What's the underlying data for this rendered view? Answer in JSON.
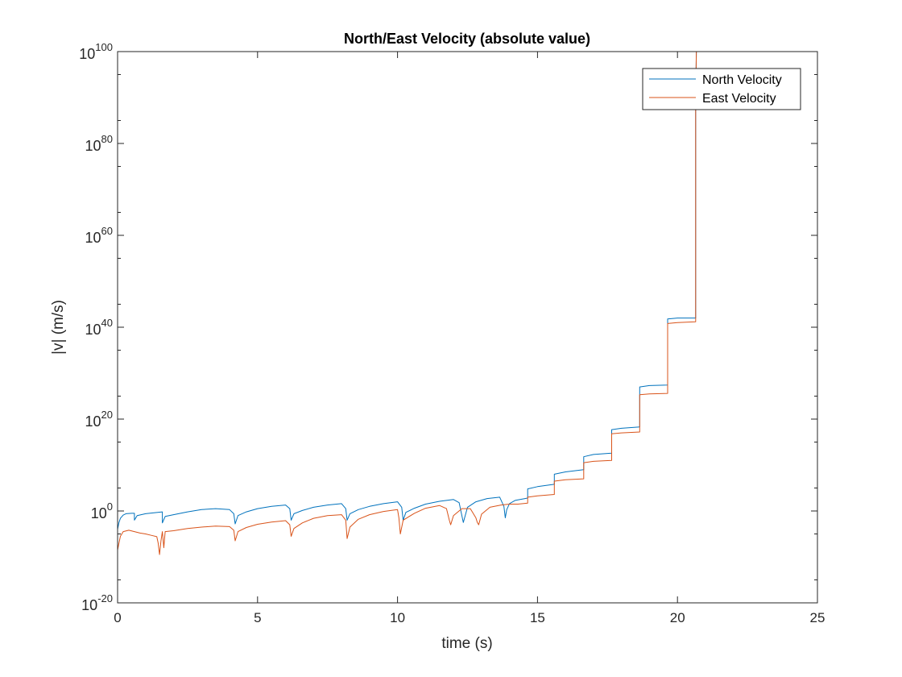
{
  "chart_data": {
    "type": "line",
    "title": "North/East Velocity (absolute value)",
    "xlabel": "time (s)",
    "ylabel": "|v| (m/s)",
    "xlim": [
      0,
      25
    ],
    "ylim": [
      1e-20,
      1e+100
    ],
    "yscale": "log",
    "xticks": [
      "0",
      "5",
      "10",
      "15",
      "20",
      "25"
    ],
    "yticks": [
      {
        "base": "10",
        "exp": "-20"
      },
      {
        "base": "10",
        "exp": "0"
      },
      {
        "base": "10",
        "exp": "20"
      },
      {
        "base": "10",
        "exp": "40"
      },
      {
        "base": "10",
        "exp": "60"
      },
      {
        "base": "10",
        "exp": "80"
      },
      {
        "base": "10",
        "exp": "100"
      }
    ],
    "grid": false,
    "legend_position": "top-right",
    "series": [
      {
        "name": "North Velocity",
        "color": "#0072BD",
        "x": [
          0.0,
          0.05,
          0.1,
          0.2,
          0.3,
          0.5,
          0.6,
          0.6,
          0.7,
          1.0,
          1.6,
          1.6,
          1.7,
          2.0,
          2.5,
          3.0,
          3.5,
          4.0,
          4.15,
          4.2,
          4.3,
          4.6,
          5.0,
          5.5,
          6.0,
          6.15,
          6.2,
          6.3,
          6.6,
          7.0,
          7.5,
          8.0,
          8.15,
          8.2,
          8.3,
          8.6,
          9.0,
          9.5,
          10.0,
          10.15,
          10.2,
          10.3,
          10.6,
          11.0,
          11.5,
          12.0,
          12.2,
          12.35,
          12.5,
          12.8,
          13.2,
          13.65,
          13.8,
          13.85,
          13.9,
          14.0,
          14.2,
          14.65,
          14.65,
          15.0,
          15.6,
          15.6,
          16.0,
          16.65,
          16.65,
          17.0,
          17.65,
          17.65,
          18.0,
          18.65,
          18.65,
          19.0,
          19.65,
          19.65,
          20.0,
          20.65,
          20.65,
          20.7
        ],
        "y_log10": [
          -4.0,
          -2.5,
          -1.6,
          -0.9,
          -0.6,
          -0.5,
          -0.5,
          -2.0,
          -1.0,
          -0.6,
          -0.2,
          -2.6,
          -1.2,
          -0.8,
          -0.2,
          0.3,
          0.5,
          0.3,
          -0.6,
          -2.8,
          -1.0,
          -0.2,
          0.5,
          1.0,
          1.3,
          0.5,
          -2.0,
          -0.6,
          0.1,
          0.8,
          1.3,
          1.6,
          0.5,
          -2.0,
          -0.6,
          0.3,
          1.0,
          1.6,
          2.0,
          0.8,
          -2.0,
          -0.3,
          0.6,
          1.5,
          2.1,
          2.5,
          1.8,
          -2.5,
          0.8,
          2.0,
          2.7,
          3.0,
          1.0,
          -1.5,
          0.3,
          1.6,
          2.3,
          2.8,
          4.8,
          5.3,
          5.8,
          8.0,
          8.5,
          9.0,
          11.8,
          12.3,
          12.6,
          17.7,
          18.0,
          18.3,
          27.0,
          27.3,
          27.4,
          41.8,
          42.0,
          42.0,
          90.0,
          110.0
        ]
      },
      {
        "name": "East Velocity",
        "color": "#D95319",
        "x": [
          0.0,
          0.05,
          0.1,
          0.2,
          0.4,
          0.6,
          0.8,
          1.0,
          1.2,
          1.4,
          1.45,
          1.5,
          1.55,
          1.6,
          1.65,
          1.7,
          2.0,
          2.5,
          3.0,
          3.5,
          4.0,
          4.15,
          4.2,
          4.3,
          4.6,
          5.0,
          5.5,
          6.0,
          6.15,
          6.2,
          6.3,
          6.6,
          7.0,
          7.5,
          8.0,
          8.15,
          8.2,
          8.3,
          8.6,
          9.0,
          9.5,
          10.0,
          10.05,
          10.1,
          10.2,
          10.6,
          11.0,
          11.5,
          11.75,
          11.85,
          11.9,
          12.0,
          12.3,
          12.6,
          12.8,
          12.85,
          12.9,
          13.0,
          13.3,
          13.7,
          14.0,
          14.3,
          14.65,
          14.65,
          15.0,
          15.6,
          15.6,
          16.0,
          16.65,
          16.65,
          17.0,
          17.65,
          17.65,
          18.0,
          18.65,
          18.65,
          19.0,
          19.65,
          19.65,
          20.0,
          20.65,
          20.65,
          20.7
        ],
        "y_log10": [
          -8.5,
          -7.0,
          -5.5,
          -4.5,
          -4.2,
          -4.5,
          -4.8,
          -5.0,
          -5.3,
          -5.6,
          -7.0,
          -9.5,
          -6.5,
          -4.5,
          -8.0,
          -4.5,
          -4.3,
          -3.8,
          -3.5,
          -3.3,
          -3.4,
          -4.2,
          -6.5,
          -4.5,
          -3.6,
          -2.9,
          -2.4,
          -2.1,
          -3.0,
          -5.5,
          -3.8,
          -2.6,
          -1.6,
          -1.0,
          -0.8,
          -2.0,
          -6.0,
          -3.5,
          -1.8,
          -0.8,
          -0.1,
          0.3,
          -1.5,
          -5.0,
          -2.0,
          -0.5,
          0.6,
          1.2,
          0.5,
          -2.0,
          -3.0,
          -1.0,
          0.5,
          0.5,
          -1.5,
          -2.5,
          -3.0,
          -0.7,
          0.8,
          1.3,
          1.5,
          1.5,
          1.7,
          3.0,
          3.3,
          3.6,
          6.5,
          6.8,
          7.0,
          10.5,
          10.8,
          11.0,
          16.8,
          17.0,
          17.2,
          25.3,
          25.5,
          25.6,
          40.8,
          41.0,
          41.2,
          90.0,
          110.0
        ]
      }
    ]
  }
}
